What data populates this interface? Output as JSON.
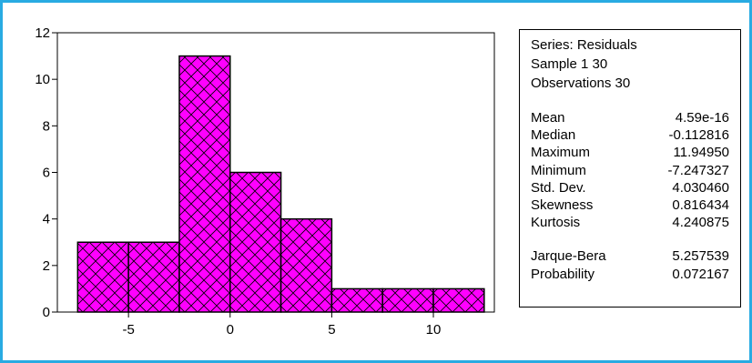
{
  "chart_data": {
    "type": "bar",
    "bins": [
      {
        "start": -7.5,
        "end": -5.0,
        "count": 3
      },
      {
        "start": -5.0,
        "end": -2.5,
        "count": 3
      },
      {
        "start": -2.5,
        "end": 0.0,
        "count": 11
      },
      {
        "start": 0.0,
        "end": 2.5,
        "count": 6
      },
      {
        "start": 2.5,
        "end": 5.0,
        "count": 4
      },
      {
        "start": 5.0,
        "end": 7.5,
        "count": 1
      },
      {
        "start": 7.5,
        "end": 10.0,
        "count": 1
      },
      {
        "start": 10.0,
        "end": 12.5,
        "count": 1
      }
    ],
    "xlim": [
      -8.5,
      13.0
    ],
    "ylim": [
      0,
      12
    ],
    "xticks": [
      -5,
      0,
      5,
      10
    ],
    "yticks": [
      0,
      2,
      4,
      6,
      8,
      10,
      12
    ],
    "bar_color": "#ff00ff",
    "hatch": "crosshatch",
    "grid": false
  },
  "stats": {
    "header": [
      "Series: Residuals",
      "Sample 1 30",
      "Observations 30"
    ],
    "rows": [
      {
        "label": "Mean",
        "value": "4.59e-16"
      },
      {
        "label": "Median",
        "value": "-0.112816"
      },
      {
        "label": "Maximum",
        "value": "11.94950"
      },
      {
        "label": "Minimum",
        "value": "-7.247327"
      },
      {
        "label": "Std. Dev.",
        "value": "4.030460"
      },
      {
        "label": "Skewness",
        "value": "0.816434"
      },
      {
        "label": "Kurtosis",
        "value": "4.240875"
      }
    ],
    "test_rows": [
      {
        "label": "Jarque-Bera",
        "value": "5.257539"
      },
      {
        "label": "Probability",
        "value": "0.072167"
      }
    ]
  },
  "colors": {
    "frame_border": "#29abe2"
  }
}
